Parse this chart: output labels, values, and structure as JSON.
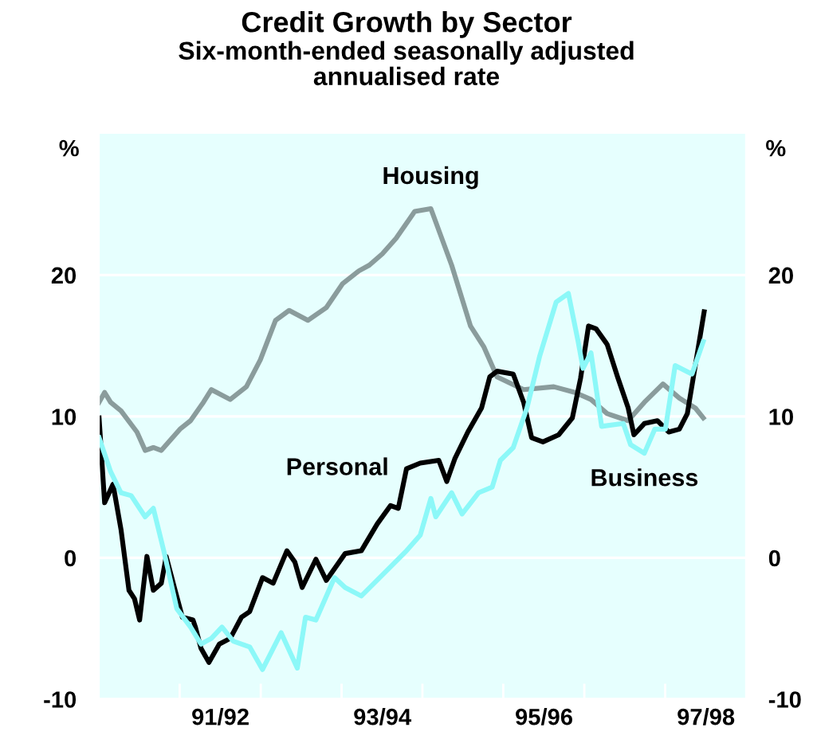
{
  "chart_data": {
    "type": "line",
    "title": "Credit Growth by Sector",
    "subtitle": "Six-month-ended seasonally adjusted\nannualised rate",
    "ylabel": "%",
    "y2label": "%",
    "xlim": [
      "1990-07-01",
      "1998-07-01"
    ],
    "xticks": [
      {
        "value": "1991-07-01",
        "label": null
      },
      {
        "value": "1992-01-01",
        "label": "91/92"
      },
      {
        "value": "1992-07-01",
        "label": null
      },
      {
        "value": "1993-07-01",
        "label": null
      },
      {
        "value": "1994-01-01",
        "label": "93/94"
      },
      {
        "value": "1994-07-01",
        "label": null
      },
      {
        "value": "1995-07-01",
        "label": null
      },
      {
        "value": "1996-01-01",
        "label": "95/96"
      },
      {
        "value": "1996-07-01",
        "label": null
      },
      {
        "value": "1997-07-01",
        "label": null
      },
      {
        "value": "1998-01-01",
        "label": "97/98"
      }
    ],
    "ylim": [
      -10,
      30
    ],
    "yticks": [
      -10,
      0,
      10,
      20
    ],
    "y2lim": [
      -10,
      30
    ],
    "y2ticks": [
      -10,
      0,
      10,
      20
    ],
    "grid": "y",
    "legend": false,
    "line_style": "solid",
    "marker": "none",
    "series": [
      {
        "name": "Housing",
        "color": "#8a9c9c",
        "x": [
          "1990-07-02",
          "1990-07-27",
          "1990-08-23",
          "1990-10-09",
          "1990-12-20",
          "1991-01-26",
          "1991-03-04",
          "1991-04-09",
          "1991-07-02",
          "1991-08-19",
          "1991-10-16",
          "1991-11-21",
          "1992-02-14",
          "1992-04-27",
          "1992-06-29",
          "1992-09-06",
          "1992-11-06",
          "1993-01-30",
          "1993-04-23",
          "1993-07-06",
          "1993-09-17",
          "1993-11-03",
          "1994-01-01",
          "1994-03-04",
          "1994-05-27",
          "1994-08-08",
          "1994-11-10",
          "1995-02-03",
          "1995-04-05",
          "1995-06-03",
          "1995-10-01",
          "1996-02-14",
          "1996-05-19",
          "1996-07-31",
          "1996-10-12",
          "1997-01-15",
          "1997-03-29",
          "1997-06-21",
          "1997-09-03",
          "1997-11-14",
          "1997-12-20"
        ],
        "values": [
          11.0,
          11.7,
          11.0,
          10.4,
          8.9,
          7.6,
          7.8,
          7.6,
          9.1,
          9.7,
          11.0,
          11.9,
          11.2,
          12.1,
          14.0,
          16.8,
          17.5,
          16.8,
          17.7,
          19.4,
          20.3,
          20.7,
          21.5,
          22.6,
          24.5,
          24.7,
          20.7,
          16.4,
          14.9,
          12.8,
          11.9,
          12.1,
          11.7,
          11.2,
          10.2,
          9.7,
          11.0,
          12.3,
          11.3,
          10.6,
          9.9
        ]
      },
      {
        "name": "Personal",
        "color": "#000000",
        "x": [
          "1990-07-02",
          "1990-07-27",
          "1990-09-03",
          "1990-10-09",
          "1990-11-14",
          "1990-12-09",
          "1991-01-01",
          "1991-02-03",
          "1991-03-04",
          "1991-04-09",
          "1991-05-01",
          "1991-06-07",
          "1991-07-13",
          "1991-08-30",
          "1991-09-10",
          "1991-10-05",
          "1991-11-10",
          "1991-12-27",
          "1992-02-14",
          "1992-04-05",
          "1992-05-12",
          "1992-07-09",
          "1992-08-26",
          "1992-10-27",
          "1992-12-02",
          "1993-01-04",
          "1993-03-07",
          "1993-04-23",
          "1993-07-17",
          "1993-09-28",
          "1993-12-09",
          "1994-02-07",
          "1994-03-14",
          "1994-04-20",
          "1994-06-21",
          "1994-09-13",
          "1994-10-19",
          "1994-11-24",
          "1995-01-22",
          "1995-03-25",
          "1995-05-01",
          "1995-06-03",
          "1995-08-15",
          "1995-10-01",
          "1995-11-06",
          "1995-12-27",
          "1996-03-07",
          "1996-05-08",
          "1996-06-14",
          "1996-07-20",
          "1996-08-23",
          "1996-10-12",
          "1996-11-28",
          "1997-01-15",
          "1997-02-10",
          "1997-03-29",
          "1997-05-27",
          "1997-07-17",
          "1997-09-03",
          "1997-10-09",
          "1997-11-14",
          "1997-12-24"
        ],
        "values": [
          9.9,
          3.9,
          5.2,
          2.0,
          -2.3,
          -2.9,
          -4.4,
          0.1,
          -2.3,
          -1.8,
          0.1,
          -2.1,
          -4.2,
          -4.4,
          -4.9,
          -6.4,
          -7.4,
          -6.1,
          -5.7,
          -4.2,
          -3.8,
          -1.4,
          -1.8,
          0.5,
          -0.3,
          -2.1,
          -0.1,
          -1.6,
          0.3,
          0.5,
          2.4,
          3.7,
          3.5,
          6.3,
          6.7,
          6.9,
          5.4,
          7.0,
          8.9,
          10.6,
          12.8,
          13.2,
          13.0,
          11.0,
          8.5,
          8.2,
          8.7,
          9.9,
          12.7,
          16.4,
          16.2,
          15.1,
          12.8,
          10.6,
          8.7,
          9.5,
          9.7,
          8.9,
          9.1,
          10.2,
          13.6,
          17.4
        ]
      },
      {
        "name": "Business",
        "color": "#8cf8f8",
        "x": [
          "1990-07-02",
          "1990-08-23",
          "1990-10-09",
          "1990-11-24",
          "1991-01-26",
          "1991-03-04",
          "1991-04-20",
          "1991-06-18",
          "1991-08-19",
          "1991-10-05",
          "1991-11-21",
          "1992-01-08",
          "1992-02-28",
          "1992-05-12",
          "1992-07-09",
          "1992-10-01",
          "1992-12-13",
          "1993-01-19",
          "1993-03-07",
          "1993-05-30",
          "1993-07-17",
          "1993-09-28",
          "1994-01-15",
          "1994-04-20",
          "1994-06-21",
          "1994-08-08",
          "1994-08-30",
          "1994-11-10",
          "1994-12-27",
          "1995-03-11",
          "1995-05-12",
          "1995-06-18",
          "1995-08-15",
          "1995-10-16",
          "1995-12-13",
          "1996-02-25",
          "1996-04-20",
          "1996-06-03",
          "1996-06-25",
          "1996-07-31",
          "1996-09-17",
          "1996-12-24",
          "1997-01-26",
          "1997-03-29",
          "1997-05-15",
          "1997-07-02",
          "1997-08-15",
          "1997-10-30",
          "1997-12-20"
        ],
        "values": [
          8.5,
          6.1,
          4.6,
          4.4,
          2.9,
          3.5,
          0.5,
          -3.6,
          -4.9,
          -6.1,
          -5.7,
          -4.9,
          -5.9,
          -6.3,
          -7.9,
          -5.3,
          -7.8,
          -4.2,
          -4.4,
          -1.4,
          -2.1,
          -2.7,
          -1.0,
          0.5,
          1.6,
          4.2,
          2.9,
          4.6,
          3.1,
          4.6,
          5.0,
          6.9,
          7.8,
          10.6,
          14.3,
          18.1,
          18.7,
          15.3,
          13.4,
          14.5,
          9.3,
          9.5,
          8.0,
          7.4,
          9.1,
          9.1,
          13.6,
          13.0,
          15.3
        ]
      }
    ]
  }
}
